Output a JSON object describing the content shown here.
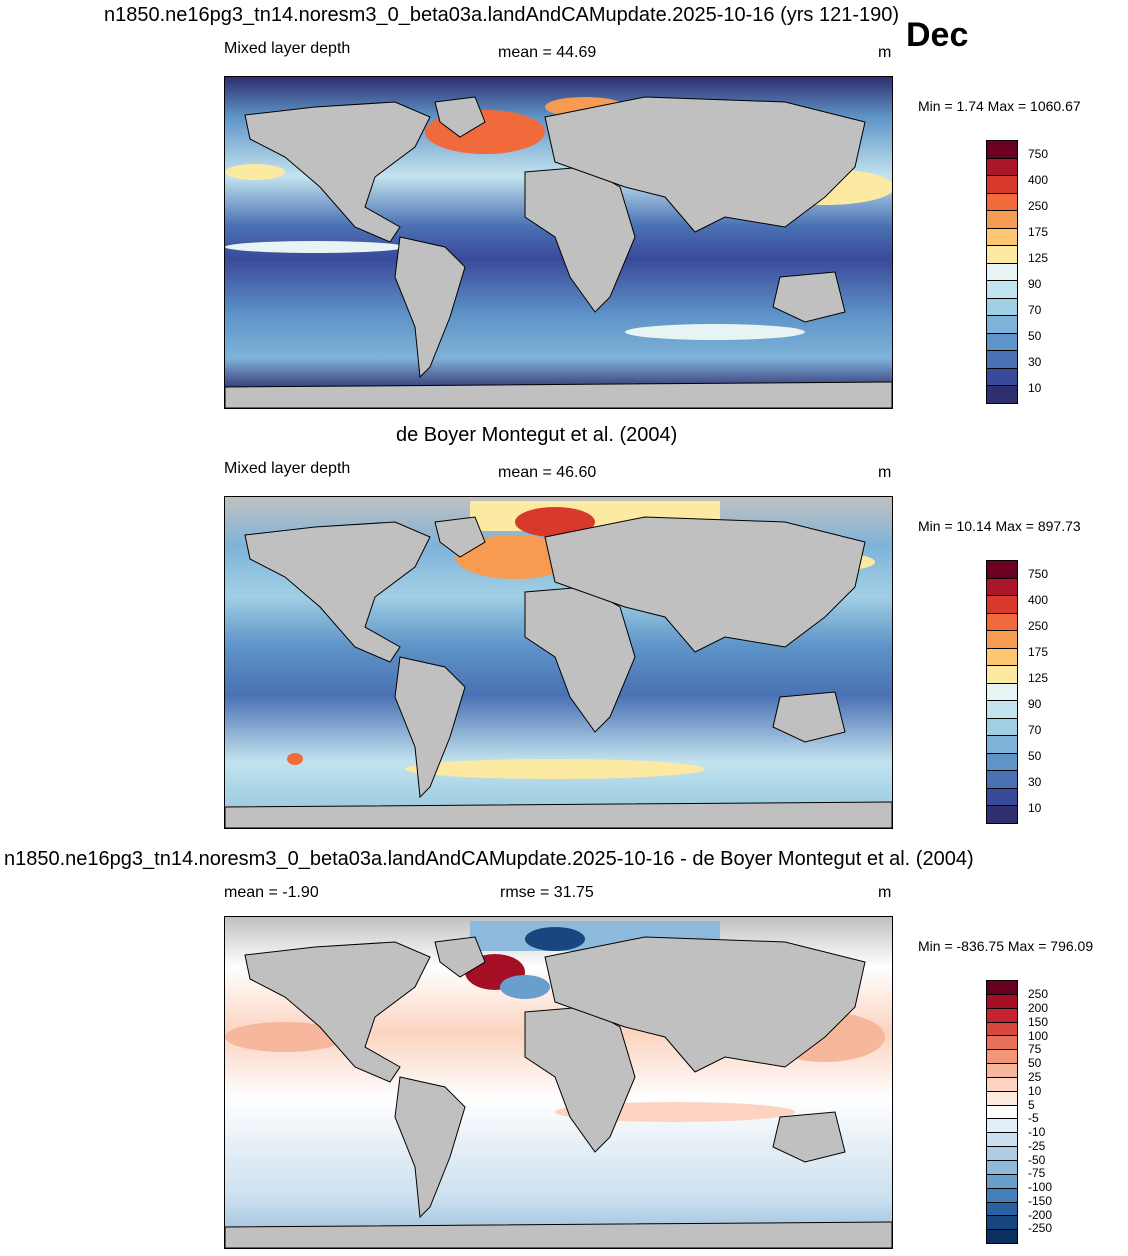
{
  "header": {
    "main_title": "n1850.ne16pg3_tn14.noresm3_0_beta03a.landAndCAMupdate.2025-10-16 (yrs 121-190)",
    "month": "Dec"
  },
  "panels": [
    {
      "id": "model",
      "top_title": "",
      "variable": "Mixed layer depth",
      "stat_label": "mean =  44.69",
      "unit": "m",
      "minmax": "Min =   1.74 Max = 1060.67",
      "colorbar_labels": [
        "750",
        "400",
        "250",
        "175",
        "125",
        "90",
        "70",
        "50",
        "30",
        "10"
      ],
      "colorbar_colors": [
        "#6b0020",
        "#a8182a",
        "#d7392c",
        "#f06a3c",
        "#f79a52",
        "#fcc673",
        "#fdeaa2",
        "#e8f4f4",
        "#c3e3ee",
        "#a1cfe4",
        "#7fb3d9",
        "#5e94c8",
        "#4a71b4",
        "#3a4a9a",
        "#2f2e6e"
      ]
    },
    {
      "id": "obs",
      "top_title": "de Boyer Montegut et al. (2004)",
      "variable": "Mixed layer depth",
      "stat_label": "mean =  46.60",
      "unit": "m",
      "minmax": "Min =  10.14 Max = 897.73",
      "colorbar_labels": [
        "750",
        "400",
        "250",
        "175",
        "125",
        "90",
        "70",
        "50",
        "30",
        "10"
      ],
      "colorbar_colors": [
        "#6b0020",
        "#a8182a",
        "#d7392c",
        "#f06a3c",
        "#f79a52",
        "#fcc673",
        "#fdeaa2",
        "#e8f4f4",
        "#c3e3ee",
        "#a1cfe4",
        "#7fb3d9",
        "#5e94c8",
        "#4a71b4",
        "#3a4a9a",
        "#2f2e6e"
      ]
    },
    {
      "id": "diff",
      "top_title": "n1850.ne16pg3_tn14.noresm3_0_beta03a.landAndCAMupdate.2025-10-16 - de Boyer Montegut et al. (2004)",
      "variable": "mean =  -1.90",
      "stat_label": "rmse =  31.75",
      "unit": "m",
      "minmax": "Min = -836.75 Max = 796.09",
      "colorbar_labels": [
        "250",
        "200",
        "150",
        "100",
        "75",
        "50",
        "25",
        "10",
        "5",
        "-5",
        "-10",
        "-25",
        "-50",
        "-75",
        "-100",
        "-150",
        "-200",
        "-250"
      ],
      "colorbar_colors": [
        "#67001f",
        "#a50f26",
        "#c4232f",
        "#d9483f",
        "#e8715a",
        "#f29579",
        "#f7b79c",
        "#fbd3c0",
        "#fdeadf",
        "#ffffff",
        "#e4eef6",
        "#cbe0ef",
        "#aecde6",
        "#8db9dc",
        "#699fcd",
        "#4481ba",
        "#2a629f",
        "#18467f",
        "#0b2f5e"
      ]
    }
  ]
}
